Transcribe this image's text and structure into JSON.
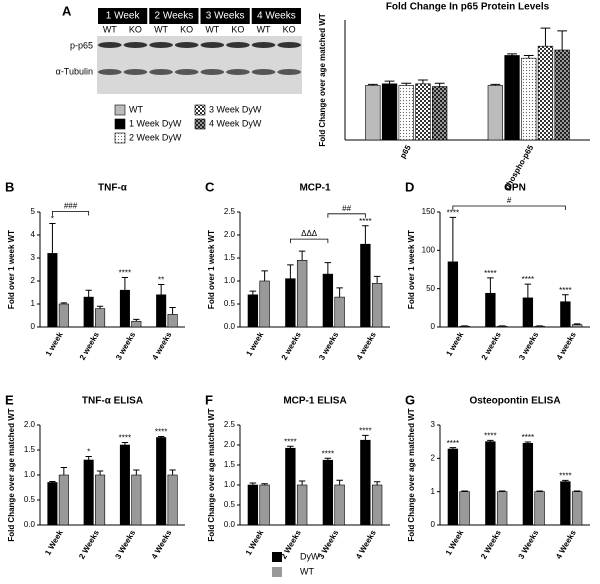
{
  "blot": {
    "panel": "A",
    "groups": [
      {
        "label": "1 Week",
        "lanes": [
          "WT",
          "KO"
        ]
      },
      {
        "label": "2 Weeks",
        "lanes": [
          "WT",
          "KO"
        ]
      },
      {
        "label": "3 Weeks",
        "lanes": [
          "WT",
          "KO"
        ]
      },
      {
        "label": "4 Weeks",
        "lanes": [
          "WT",
          "KO"
        ]
      }
    ],
    "rows": [
      "p-p65",
      "α-Tubulin"
    ]
  },
  "legend": {
    "entries": [
      {
        "name": "DyW",
        "color": "#000000"
      },
      {
        "name": "WT",
        "color": "#999999"
      }
    ]
  },
  "chart_data": [
    {
      "type": "bar",
      "title": "Fold Change In p65 Protein Levels",
      "y_label": "Fold Change over age matched WT",
      "categories": [
        "p65",
        "phospho-p65"
      ],
      "ylim": [
        0,
        2.2
      ],
      "series": [
        {
          "name": "WT",
          "color": "#bbbbbb",
          "values": [
            1.0,
            1.0
          ],
          "errors": [
            0.02,
            0.02
          ]
        },
        {
          "name": "1 Week DyW",
          "color": "#000000",
          "values": [
            1.03,
            1.55
          ],
          "errors": [
            0.05,
            0.03
          ]
        },
        {
          "name": "2 Week DyW",
          "color": "#ffffff",
          "pattern": "dots",
          "values": [
            1.0,
            1.5
          ],
          "errors": [
            0.04,
            0.05
          ]
        },
        {
          "name": "3 Week DyW",
          "color": "#ffffff",
          "pattern": "checks",
          "values": [
            1.03,
            1.72
          ],
          "errors": [
            0.07,
            0.33
          ]
        },
        {
          "name": "4 Week DyW",
          "color": "#888888",
          "pattern": "checks-dark",
          "values": [
            0.98,
            1.65
          ],
          "errors": [
            0.06,
            0.35
          ]
        }
      ]
    },
    {
      "type": "bar",
      "panel": "B",
      "title": "TNF-α",
      "y_label": "Fold over 1 week WT",
      "categories": [
        "1 week",
        "2 weeks",
        "3 weeks",
        "4 weeks"
      ],
      "ylim": [
        0,
        5
      ],
      "yticks": [
        0,
        1,
        2,
        3,
        4,
        5
      ],
      "series": [
        {
          "color": "#000000",
          "values": [
            3.2,
            1.3,
            1.6,
            1.4
          ],
          "errors": [
            1.3,
            0.3,
            0.55,
            0.45
          ]
        },
        {
          "color": "#999999",
          "values": [
            1.0,
            0.8,
            0.25,
            0.55
          ],
          "errors": [
            0.05,
            0.1,
            0.08,
            0.3
          ]
        }
      ],
      "significance": [
        "*",
        null,
        "****",
        "**"
      ],
      "brackets": [
        {
          "label": "###",
          "from": "1 week",
          "to": "2 weeks"
        }
      ]
    },
    {
      "type": "bar",
      "panel": "C",
      "title": "MCP-1",
      "y_label": "Fold over 1 week WT",
      "categories": [
        "1 week",
        "2 weeks",
        "3 weeks",
        "4 weeks"
      ],
      "ylim": [
        0,
        2.5
      ],
      "yticks": [
        0.0,
        0.5,
        1.0,
        1.5,
        2.0,
        2.5
      ],
      "series": [
        {
          "color": "#000000",
          "values": [
            0.7,
            1.05,
            1.15,
            1.8
          ],
          "errors": [
            0.08,
            0.3,
            0.25,
            0.4
          ]
        },
        {
          "color": "#999999",
          "values": [
            1.0,
            1.45,
            0.65,
            0.95
          ],
          "errors": [
            0.22,
            0.2,
            0.2,
            0.15
          ]
        }
      ],
      "significance": [
        null,
        null,
        null,
        "****"
      ],
      "brackets": [
        {
          "label": "ΔΔΔ",
          "from": "2 weeks",
          "to": "3 weeks"
        },
        {
          "label": "##",
          "from": "3 weeks",
          "to": "4 weeks"
        }
      ]
    },
    {
      "type": "bar",
      "panel": "D",
      "title": "OPN",
      "y_label": "Fold over 1 week WT",
      "categories": [
        "1 week",
        "2 weeks",
        "3 weeks",
        "4 weeks"
      ],
      "ylim": [
        0,
        150
      ],
      "yticks": [
        0,
        50,
        100,
        150
      ],
      "series": [
        {
          "color": "#000000",
          "values": [
            85,
            44,
            38,
            33
          ],
          "errors": [
            58,
            20,
            18,
            9
          ]
        },
        {
          "color": "#999999",
          "values": [
            1,
            1,
            1,
            3
          ],
          "errors": [
            0.5,
            0.5,
            0.5,
            1
          ]
        }
      ],
      "significance": [
        "****",
        "****",
        "****",
        "****"
      ],
      "brackets": [
        {
          "label": "#",
          "from": "1 week",
          "to": "4 weeks"
        }
      ]
    },
    {
      "type": "bar",
      "panel": "E",
      "title": "TNF-α ELISA",
      "y_label": "Fold Change over age matched WT",
      "categories": [
        "1 Week",
        "2 Weeks",
        "3 Weeks",
        "4 Weeks"
      ],
      "ylim": [
        0,
        2.0
      ],
      "yticks": [
        0.0,
        0.5,
        1.0,
        1.5,
        2.0
      ],
      "series": [
        {
          "color": "#000000",
          "values": [
            0.85,
            1.3,
            1.6,
            1.75
          ],
          "errors": [
            0.02,
            0.07,
            0.05,
            0.02
          ]
        },
        {
          "color": "#999999",
          "values": [
            1.0,
            1.0,
            1.0,
            1.0
          ],
          "errors": [
            0.15,
            0.08,
            0.1,
            0.1
          ]
        }
      ],
      "significance": [
        null,
        "*",
        "****",
        "****"
      ]
    },
    {
      "type": "bar",
      "panel": "F",
      "title": "MCP-1 ELISA",
      "y_label": "Fold Change over age matched WT",
      "categories": [
        "1 Week",
        "2 Weeks",
        "3 Weeks",
        "4 Weeks"
      ],
      "ylim": [
        0,
        2.5
      ],
      "yticks": [
        0.0,
        0.5,
        1.0,
        1.5,
        2.0,
        2.5
      ],
      "series": [
        {
          "color": "#000000",
          "values": [
            1.0,
            1.92,
            1.62,
            2.12
          ],
          "errors": [
            0.05,
            0.05,
            0.05,
            0.12
          ]
        },
        {
          "color": "#999999",
          "values": [
            1.0,
            1.0,
            1.0,
            1.0
          ],
          "errors": [
            0.03,
            0.1,
            0.12,
            0.08
          ]
        }
      ],
      "significance": [
        null,
        "****",
        "****",
        "****"
      ]
    },
    {
      "type": "bar",
      "panel": "G",
      "title": "Osteopontin ELISA",
      "y_label": "Fold Change over age matched WT",
      "categories": [
        "1 Week",
        "2 Weeks",
        "3 Weeks",
        "4 Weeks"
      ],
      "ylim": [
        0,
        3
      ],
      "yticks": [
        0,
        1,
        2,
        3
      ],
      "series": [
        {
          "color": "#000000",
          "values": [
            2.28,
            2.5,
            2.45,
            1.3
          ],
          "errors": [
            0.04,
            0.04,
            0.04,
            0.04
          ]
        },
        {
          "color": "#999999",
          "values": [
            1.0,
            1.0,
            1.0,
            1.0
          ],
          "errors": [
            0.02,
            0.02,
            0.02,
            0.02
          ]
        }
      ],
      "significance": [
        "****",
        "****",
        "****",
        "****"
      ]
    }
  ]
}
